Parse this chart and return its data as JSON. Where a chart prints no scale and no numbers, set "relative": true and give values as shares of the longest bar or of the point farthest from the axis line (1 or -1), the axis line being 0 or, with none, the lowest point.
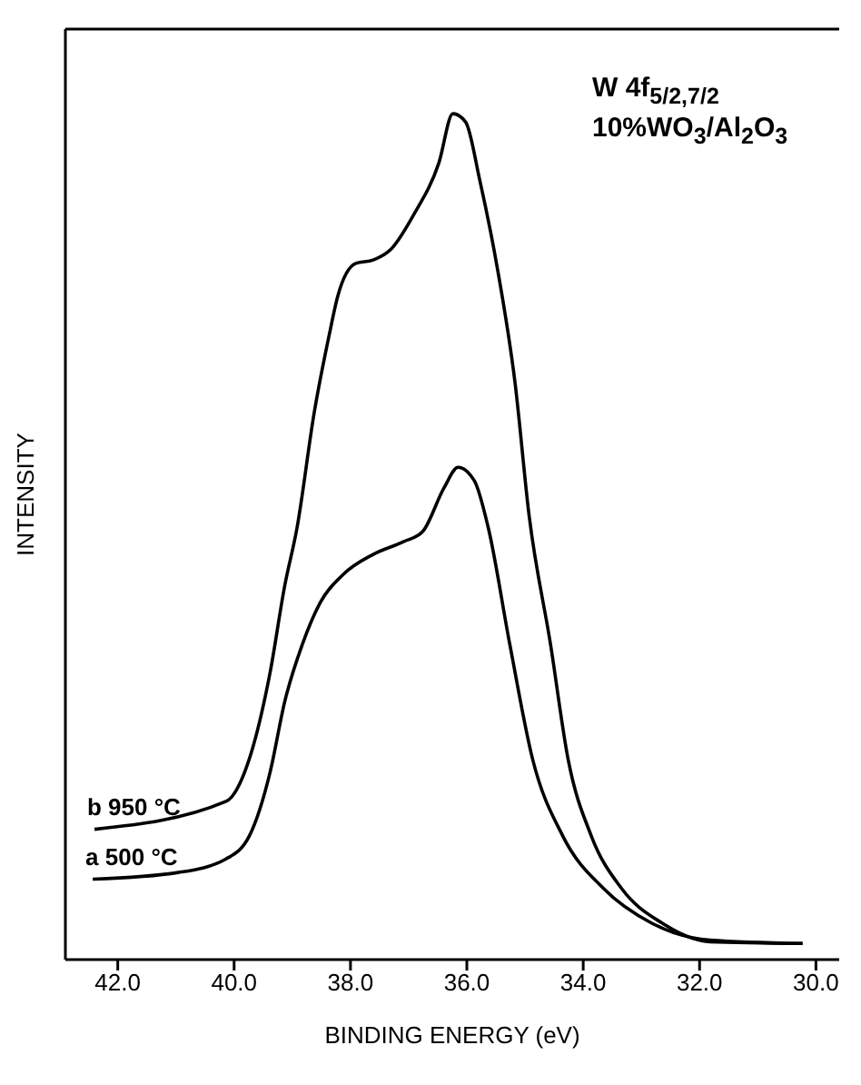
{
  "chart_data": {
    "type": "line",
    "relative": true,
    "xlabel": "BINDING ENERGY (eV)",
    "ylabel": "INTENSITY",
    "annotations": [
      "W 4f$_{5/2,7/2}$",
      "10%WO$_{3}$/Al$_{2}$O$_{3}$"
    ],
    "xlim": [
      42.9,
      29.6
    ],
    "xticks": [
      {
        "value": 42,
        "label": "42.0"
      },
      {
        "value": 40,
        "label": "40.0"
      },
      {
        "value": 38,
        "label": "38.0"
      },
      {
        "value": 36,
        "label": "36.0"
      },
      {
        "value": 34,
        "label": "34.0"
      },
      {
        "value": 32,
        "label": "32.0"
      },
      {
        "value": 30,
        "label": "30.0"
      }
    ],
    "tick_labels": "x",
    "marker": "none",
    "line_style": "solid",
    "series": [
      {
        "name": "b 950 °C",
        "color": "#000000",
        "x": [
          42.4,
          40.14,
          39.74,
          39.38,
          39.13,
          38.92,
          38.62,
          38.37,
          38.22,
          37.91,
          37.61,
          37.3,
          36.91,
          36.48,
          36.24,
          36.02,
          35.78,
          35.48,
          35.17,
          34.93,
          34.56,
          34.26,
          33.86,
          33.34,
          32.64,
          31.82,
          30.23
        ],
        "values": [
          0.154,
          0.187,
          0.237,
          0.34,
          0.442,
          0.51,
          0.648,
          0.737,
          0.784,
          0.823,
          0.827,
          0.84,
          0.881,
          0.942,
          1.0,
          0.99,
          0.922,
          0.819,
          0.681,
          0.525,
          0.372,
          0.237,
          0.146,
          0.084,
          0.043,
          0.021,
          0.019
        ]
      },
      {
        "name": "a 500 °C",
        "color": "#000000",
        "x": [
          42.43,
          40.96,
          40.14,
          39.74,
          39.38,
          39.13,
          38.83,
          38.52,
          38.13,
          37.61,
          37.09,
          36.76,
          36.39,
          36.15,
          35.87,
          35.63,
          35.26,
          34.87,
          34.35,
          33.65,
          32.82,
          31.82,
          30.23
        ],
        "values": [
          0.095,
          0.103,
          0.119,
          0.146,
          0.222,
          0.305,
          0.372,
          0.422,
          0.455,
          0.479,
          0.494,
          0.506,
          0.558,
          0.582,
          0.566,
          0.51,
          0.372,
          0.237,
          0.146,
          0.084,
          0.043,
          0.023,
          0.019
        ]
      }
    ]
  }
}
